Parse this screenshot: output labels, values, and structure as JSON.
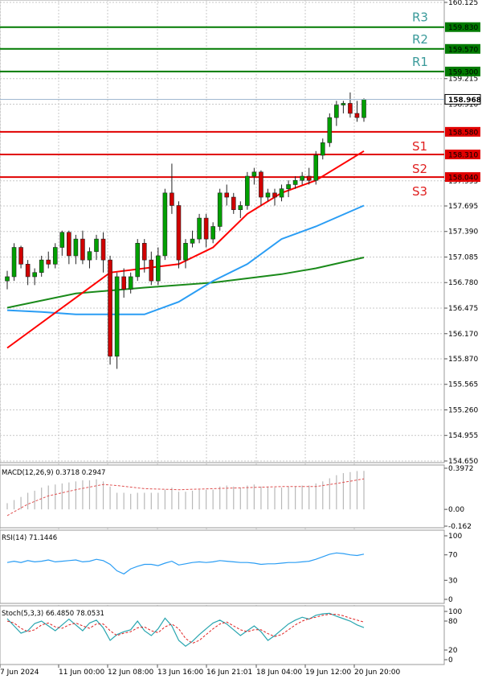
{
  "chart_data": [
    {
      "type": "candlestick",
      "title": "",
      "xlabel": "",
      "ylabel": "",
      "ylim": [
        154.65,
        160.125
      ],
      "y_ticks": [
        "160.125",
        "159.215",
        "158.910",
        "157.995",
        "157.695",
        "157.390",
        "157.085",
        "156.780",
        "156.475",
        "156.170",
        "155.870",
        "155.565",
        "155.260",
        "154.955",
        "154.650"
      ],
      "x_ticks": [
        "7 Jun 2024",
        "11 Jun 00:00",
        "12 Jun 08:00",
        "13 Jun 16:00",
        "16 Jun 21:01",
        "18 Jun 04:00",
        "19 Jun 12:00",
        "20 Jun 20:00"
      ],
      "current_price": "158.968",
      "levels": [
        {
          "name": "R3",
          "label": "R3",
          "value": 159.83,
          "value_label": "159.830",
          "color": "#007a00"
        },
        {
          "name": "R2",
          "label": "R2",
          "value": 159.57,
          "value_label": "159.570",
          "color": "#007a00"
        },
        {
          "name": "R1",
          "label": "R1",
          "value": 159.3,
          "value_label": "159.300",
          "color": "#007a00"
        },
        {
          "name": "S1",
          "label": "S1",
          "value": 158.58,
          "value_label": "158.580",
          "color": "#e00000"
        },
        {
          "name": "S2",
          "label": "S2",
          "value": 158.31,
          "value_label": "158.310",
          "color": "#e00000"
        },
        {
          "name": "S3",
          "label": "S3",
          "value": 158.04,
          "value_label": "158.040",
          "color": "#e00000"
        }
      ],
      "candles": [
        [
          156.8,
          156.92,
          156.7,
          156.85
        ],
        [
          156.85,
          157.25,
          156.8,
          157.2
        ],
        [
          157.2,
          157.22,
          156.95,
          157.0
        ],
        [
          157.0,
          157.05,
          156.75,
          156.85
        ],
        [
          156.85,
          156.95,
          156.75,
          156.9
        ],
        [
          156.9,
          157.1,
          156.85,
          157.05
        ],
        [
          157.05,
          157.15,
          156.95,
          157.0
        ],
        [
          157.0,
          157.25,
          156.95,
          157.2
        ],
        [
          157.2,
          157.4,
          157.1,
          157.38
        ],
        [
          157.38,
          157.4,
          157.0,
          157.1
        ],
        [
          157.1,
          157.35,
          157.0,
          157.3
        ],
        [
          157.3,
          157.4,
          157.0,
          157.05
        ],
        [
          157.05,
          157.2,
          156.95,
          157.15
        ],
        [
          157.15,
          157.35,
          157.05,
          157.3
        ],
        [
          157.3,
          157.38,
          156.9,
          157.05
        ],
        [
          157.05,
          157.1,
          155.8,
          155.9
        ],
        [
          155.9,
          156.9,
          155.75,
          156.85
        ],
        [
          156.85,
          156.95,
          156.6,
          156.7
        ],
        [
          156.7,
          156.9,
          156.65,
          156.85
        ],
        [
          156.85,
          157.3,
          156.8,
          157.25
        ],
        [
          157.25,
          157.3,
          156.9,
          157.05
        ],
        [
          157.05,
          157.15,
          156.75,
          156.8
        ],
        [
          156.8,
          157.2,
          156.75,
          157.1
        ],
        [
          157.1,
          157.9,
          157.05,
          157.85
        ],
        [
          157.85,
          158.2,
          157.6,
          157.7
        ],
        [
          157.7,
          157.75,
          156.95,
          157.05
        ],
        [
          157.05,
          157.3,
          156.95,
          157.25
        ],
        [
          157.25,
          157.4,
          157.2,
          157.3
        ],
        [
          157.3,
          157.6,
          157.25,
          157.55
        ],
        [
          157.55,
          157.6,
          157.2,
          157.3
        ],
        [
          157.3,
          157.5,
          157.25,
          157.45
        ],
        [
          157.45,
          157.9,
          157.4,
          157.85
        ],
        [
          157.85,
          157.95,
          157.7,
          157.8
        ],
        [
          157.8,
          157.85,
          157.6,
          157.65
        ],
        [
          157.65,
          157.75,
          157.55,
          157.7
        ],
        [
          157.7,
          158.1,
          157.65,
          158.05
        ],
        [
          158.05,
          158.15,
          157.95,
          158.1
        ],
        [
          158.1,
          158.12,
          157.7,
          157.8
        ],
        [
          157.8,
          157.9,
          157.75,
          157.85
        ],
        [
          157.85,
          157.9,
          157.7,
          157.8
        ],
        [
          157.8,
          157.95,
          157.75,
          157.9
        ],
        [
          157.9,
          158.0,
          157.8,
          157.95
        ],
        [
          157.95,
          158.05,
          157.9,
          158.0
        ],
        [
          158.0,
          158.1,
          157.95,
          158.05
        ],
        [
          158.05,
          158.15,
          157.95,
          158.0
        ],
        [
          158.0,
          158.35,
          157.95,
          158.3
        ],
        [
          158.3,
          158.5,
          158.25,
          158.45
        ],
        [
          158.45,
          158.8,
          158.4,
          158.75
        ],
        [
          158.75,
          158.95,
          158.65,
          158.9
        ],
        [
          158.9,
          158.95,
          158.8,
          158.92
        ],
        [
          158.92,
          159.05,
          158.75,
          158.8
        ],
        [
          158.8,
          158.95,
          158.7,
          158.75
        ],
        [
          158.75,
          158.98,
          158.7,
          158.968
        ]
      ],
      "ma_fast": [
        [
          0,
          156.0
        ],
        [
          15,
          156.9
        ],
        [
          25,
          157.0
        ],
        [
          30,
          157.2
        ],
        [
          35,
          157.6
        ],
        [
          40,
          157.85
        ],
        [
          45,
          158.0
        ],
        [
          52,
          158.35
        ]
      ],
      "ma_mid": [
        [
          0,
          156.45
        ],
        [
          5,
          156.43
        ],
        [
          10,
          156.4
        ],
        [
          20,
          156.4
        ],
        [
          25,
          156.55
        ],
        [
          30,
          156.8
        ],
        [
          35,
          157.0
        ],
        [
          40,
          157.3
        ],
        [
          45,
          157.45
        ],
        [
          52,
          157.7
        ]
      ],
      "ma_slow": [
        [
          0,
          156.48
        ],
        [
          10,
          156.65
        ],
        [
          20,
          156.72
        ],
        [
          30,
          156.78
        ],
        [
          40,
          156.88
        ],
        [
          45,
          156.95
        ],
        [
          52,
          157.08
        ]
      ]
    },
    {
      "type": "histogram+line",
      "label": "MACD(12,26,9) 0.3718 0.2947",
      "y_ticks": [
        "0.3972",
        "0.00",
        "-0.162"
      ],
      "ylim": [
        -0.162,
        0.3972
      ],
      "histogram": [
        0.06,
        0.09,
        0.12,
        0.16,
        0.18,
        0.21,
        0.23,
        0.24,
        0.25,
        0.26,
        0.27,
        0.28,
        0.28,
        0.29,
        0.27,
        0.22,
        0.16,
        0.16,
        0.15,
        0.16,
        0.16,
        0.16,
        0.16,
        0.19,
        0.21,
        0.17,
        0.17,
        0.18,
        0.19,
        0.19,
        0.19,
        0.22,
        0.23,
        0.22,
        0.21,
        0.23,
        0.24,
        0.22,
        0.22,
        0.21,
        0.21,
        0.22,
        0.22,
        0.23,
        0.23,
        0.25,
        0.27,
        0.3,
        0.33,
        0.35,
        0.36,
        0.37,
        0.3718
      ],
      "signal": [
        [
          0,
          -0.06
        ],
        [
          3,
          0.05
        ],
        [
          6,
          0.13
        ],
        [
          10,
          0.19
        ],
        [
          14,
          0.24
        ],
        [
          16,
          0.23
        ],
        [
          20,
          0.2
        ],
        [
          25,
          0.19
        ],
        [
          30,
          0.2
        ],
        [
          35,
          0.21
        ],
        [
          40,
          0.22
        ],
        [
          45,
          0.22
        ],
        [
          48,
          0.25
        ],
        [
          52,
          0.2947
        ]
      ]
    },
    {
      "type": "line",
      "label": "RSI(14) 71.1446",
      "y_ticks": [
        "100",
        "70",
        "30",
        "0"
      ],
      "ylim": [
        0,
        100
      ],
      "values": [
        58,
        60,
        58,
        61,
        59,
        60,
        62,
        59,
        60,
        61,
        62,
        59,
        60,
        63,
        61,
        55,
        45,
        40,
        48,
        52,
        55,
        55,
        53,
        57,
        60,
        54,
        56,
        58,
        59,
        58,
        59,
        61,
        60,
        59,
        58,
        58,
        57,
        55,
        56,
        56,
        57,
        58,
        58,
        59,
        60,
        63,
        67,
        71,
        73,
        72,
        70,
        69,
        71.1446
      ]
    },
    {
      "type": "line",
      "label": "Stoch(5,3,3) 66.4850 78.0531",
      "y_ticks": [
        "100",
        "80",
        "20",
        "0"
      ],
      "ylim": [
        0,
        100
      ],
      "k": [
        85,
        70,
        55,
        60,
        75,
        80,
        70,
        60,
        72,
        84,
        72,
        60,
        76,
        82,
        66,
        40,
        52,
        58,
        62,
        80,
        60,
        50,
        64,
        86,
        70,
        40,
        28,
        38,
        52,
        64,
        76,
        82,
        74,
        62,
        50,
        60,
        70,
        58,
        40,
        50,
        62,
        74,
        82,
        88,
        84,
        92,
        95,
        96,
        90,
        85,
        80,
        72,
        66.485
      ],
      "d": [
        80,
        76,
        65,
        58,
        62,
        72,
        76,
        68,
        65,
        72,
        76,
        70,
        65,
        74,
        74,
        60,
        50,
        55,
        58,
        66,
        68,
        60,
        56,
        68,
        74,
        64,
        44,
        34,
        40,
        52,
        64,
        74,
        78,
        70,
        62,
        58,
        62,
        62,
        54,
        48,
        52,
        62,
        72,
        80,
        85,
        88,
        92,
        94,
        94,
        91,
        86,
        82,
        78.0531
      ]
    }
  ],
  "colors": {
    "bull_candle": "#00a000",
    "bear_candle": "#d00000",
    "support": "#e00000",
    "resistance": "#007a00",
    "ma_fast": "#ff0000",
    "ma_mid": "#2a9df4",
    "ma_slow": "#1a8a1a",
    "macd_signal": "#e05050",
    "rsi_line": "#2a9df4",
    "stoch_k": "#2aa6b0",
    "stoch_d": "#e02020",
    "price_tag": "#ffffff"
  }
}
